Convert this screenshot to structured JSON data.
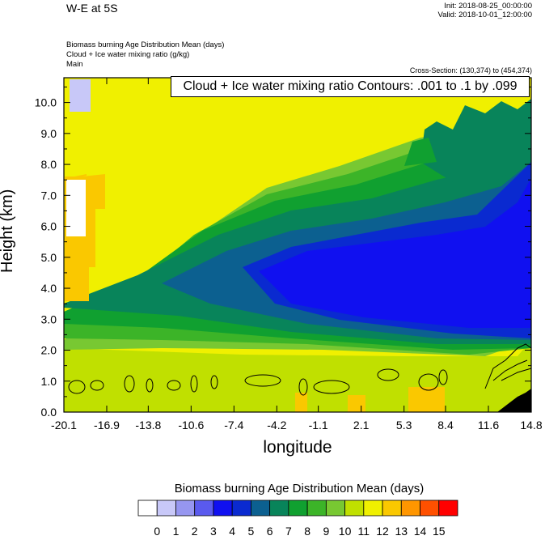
{
  "header": {
    "title": "W-E at 5S",
    "init": "Init: 2018-08-25_00:00:00",
    "valid": "Valid: 2018-10-01_12:00:00",
    "subtitles": [
      "Biomass burning Age Distribution Mean   (days)",
      "Cloud + Ice water mixing ratio   (g/kg)",
      "Main"
    ],
    "cross_section": "Cross-Section: (130,374) to (454,374)",
    "contour_info": "Cloud + Ice water mixing ratio Contours: .001 to .1 by .099"
  },
  "chart_data": {
    "type": "heatmap",
    "xlabel": "longitude",
    "ylabel": "Height (km)",
    "x_ticks": [
      "-20.1",
      "-16.9",
      "-13.8",
      "-10.6",
      "-7.4",
      "-4.2",
      "-1.1",
      "2.1",
      "5.3",
      "8.4",
      "11.6",
      "14.8"
    ],
    "y_ticks": [
      "0.0",
      "1.0",
      "2.0",
      "3.0",
      "4.0",
      "5.0",
      "6.0",
      "7.0",
      "8.0",
      "9.0",
      "10.0"
    ],
    "xlim": [
      -20.1,
      14.8
    ],
    "ylim": [
      0.0,
      10.8
    ],
    "colorbar": {
      "title": "Biomass burning Age Distribution Mean  (days)",
      "labels": [
        "0",
        "1",
        "2",
        "3",
        "4",
        "5",
        "6",
        "7",
        "8",
        "9",
        "10",
        "11",
        "12",
        "13",
        "14",
        "15"
      ],
      "colors": [
        "#ffffff",
        "#c8c8f8",
        "#9696f0",
        "#5a5aee",
        "#1010f0",
        "#0a2ad0",
        "#0c6090",
        "#08845a",
        "#10a030",
        "#3cb428",
        "#78c832",
        "#c0e000",
        "#f0f000",
        "#fac800",
        "#ff9600",
        "#ff5000",
        "#ff0000"
      ]
    }
  }
}
